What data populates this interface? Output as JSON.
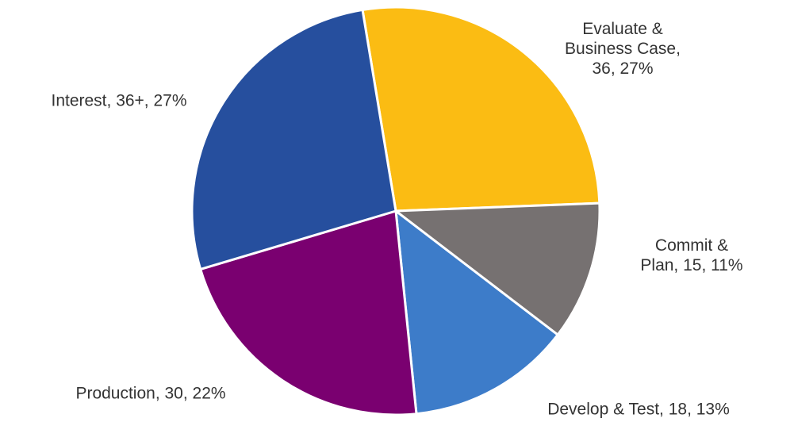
{
  "chart_data": {
    "type": "pie",
    "categories": [
      "Evaluate & Business Case, 36, 27%",
      "Commit & Plan, 15, 11%",
      "Develop & Test, 18, 13%",
      "Production, 30, 22%",
      "Interest, 36+, 27%"
    ],
    "values": [
      27,
      11,
      13,
      22,
      27
    ],
    "colors": [
      "#fbbc13",
      "#767171",
      "#3d7cc9",
      "#7a0070",
      "#264f9e"
    ]
  }
}
